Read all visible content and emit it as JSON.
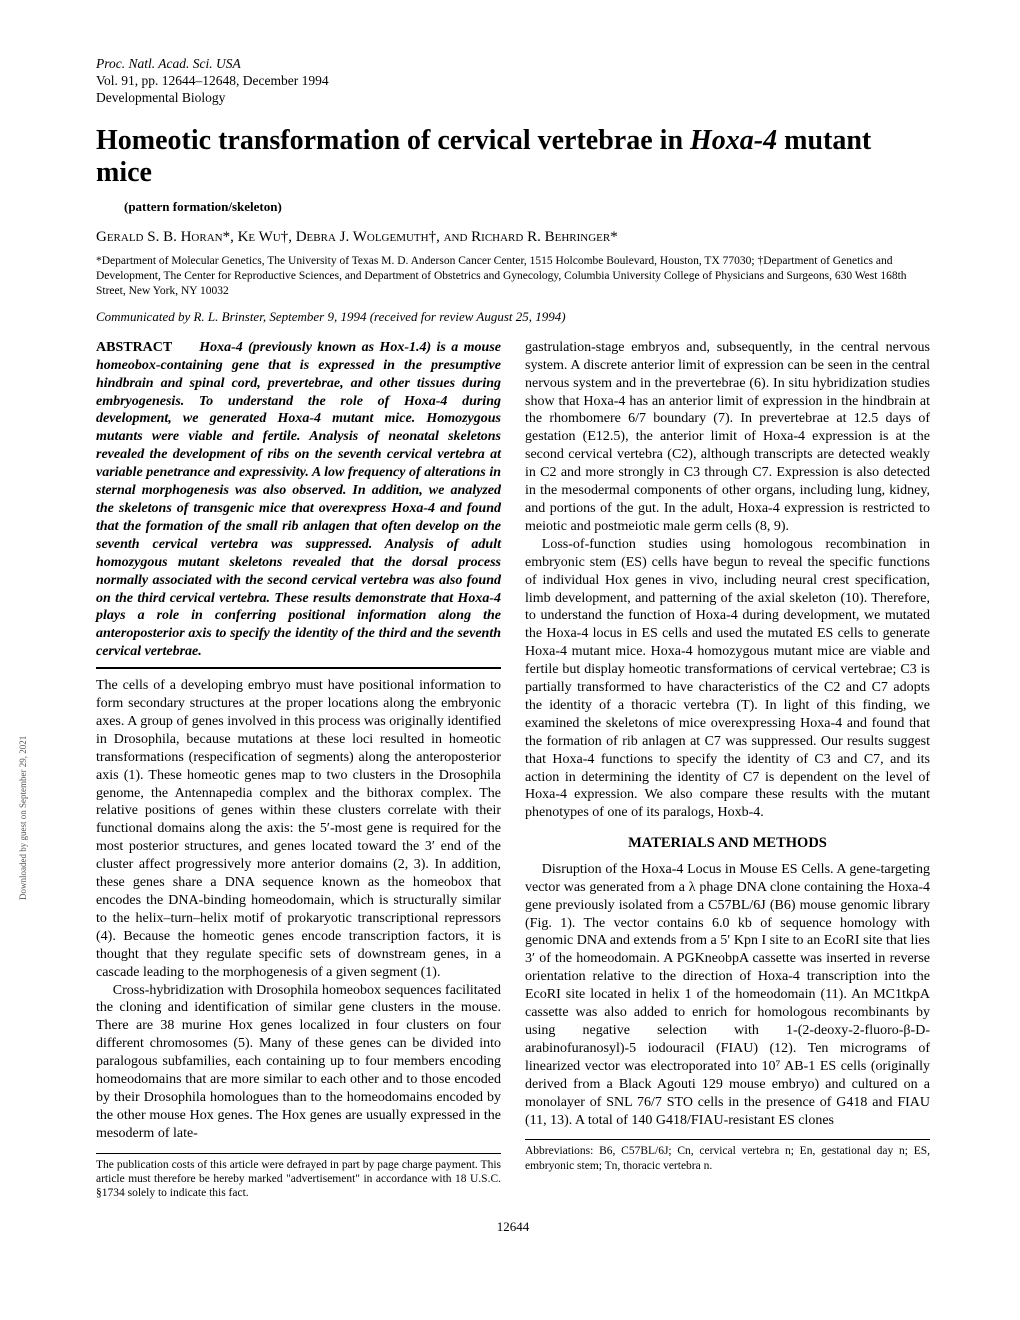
{
  "journal": {
    "line1": "Proc. Natl. Acad. Sci. USA",
    "line2": "Vol. 91, pp. 12644–12648, December 1994",
    "line3": "Developmental Biology"
  },
  "title_plain_prefix": "Homeotic transformation of cervical vertebrae in ",
  "title_italic": "Hoxa-4",
  "title_plain_suffix": " mutant mice",
  "subtitle": "(pattern formation/skeleton)",
  "authors": "Gerald S. B. Horan*, Ke Wu†, Debra J. Wolgemuth†, and Richard R. Behringer*",
  "affiliations": "*Department of Molecular Genetics, The University of Texas M. D. Anderson Cancer Center, 1515 Holcombe Boulevard, Houston, TX 77030; †Department of Genetics and Development, The Center for Reproductive Sciences, and Department of Obstetrics and Gynecology, Columbia University College of Physicians and Surgeons, 630 West 168th Street, New York, NY 10032",
  "communicated": "Communicated by R. L. Brinster, September 9, 1994 (received for review August 25, 1994)",
  "abstract_label": "ABSTRACT",
  "abstract_text": "Hoxa-4 (previously known as Hox-1.4) is a mouse homeobox-containing gene that is expressed in the presumptive hindbrain and spinal cord, prevertebrae, and other tissues during embryogenesis. To understand the role of Hoxa-4 during development, we generated Hoxa-4 mutant mice. Homozygous mutants were viable and fertile. Analysis of neonatal skeletons revealed the development of ribs on the seventh cervical vertebra at variable penetrance and expressivity. A low frequency of alterations in sternal morphogenesis was also observed. In addition, we analyzed the skeletons of transgenic mice that overexpress Hoxa-4 and found that the formation of the small rib anlagen that often develop on the seventh cervical vertebra was suppressed. Analysis of adult homozygous mutant skeletons revealed that the dorsal process normally associated with the second cervical vertebra was also found on the third cervical vertebra. These results demonstrate that Hoxa-4 plays a role in conferring positional information along the anteroposterior axis to specify the identity of the third and the seventh cervical vertebrae.",
  "left_body_p1": "The cells of a developing embryo must have positional information to form secondary structures at the proper locations along the embryonic axes. A group of genes involved in this process was originally identified in Drosophila, because mutations at these loci resulted in homeotic transformations (respecification of segments) along the anteroposterior axis (1). These homeotic genes map to two clusters in the Drosophila genome, the Antennapedia complex and the bithorax complex. The relative positions of genes within these clusters correlate with their functional domains along the axis: the 5′-most gene is required for the most posterior structures, and genes located toward the 3′ end of the cluster affect progressively more anterior domains (2, 3). In addition, these genes share a DNA sequence known as the homeobox that encodes the DNA-binding homeodomain, which is structurally similar to the helix–turn–helix motif of prokaryotic transcriptional repressors (4). Because the homeotic genes encode transcription factors, it is thought that they regulate specific sets of downstream genes, in a cascade leading to the morphogenesis of a given segment (1).",
  "left_body_p2": "Cross-hybridization with Drosophila homeobox sequences facilitated the cloning and identification of similar gene clusters in the mouse. There are 38 murine Hox genes localized in four clusters on four different chromosomes (5). Many of these genes can be divided into paralogous subfamilies, each containing up to four members encoding homeodomains that are more similar to each other and to those encoded by their Drosophila homologues than to the homeodomains encoded by the other mouse Hox genes. The Hox genes are usually expressed in the mesoderm of late-",
  "right_body_p1": "gastrulation-stage embryos and, subsequently, in the central nervous system. A discrete anterior limit of expression can be seen in the central nervous system and in the prevertebrae (6). In situ hybridization studies show that Hoxa-4 has an anterior limit of expression in the hindbrain at the rhombomere 6/7 boundary (7). In prevertebrae at 12.5 days of gestation (E12.5), the anterior limit of Hoxa-4 expression is at the second cervical vertebra (C2), although transcripts are detected weakly in C2 and more strongly in C3 through C7. Expression is also detected in the mesodermal components of other organs, including lung, kidney, and portions of the gut. In the adult, Hoxa-4 expression is restricted to meiotic and postmeiotic male germ cells (8, 9).",
  "right_body_p2": "Loss-of-function studies using homologous recombination in embryonic stem (ES) cells have begun to reveal the specific functions of individual Hox genes in vivo, including neural crest specification, limb development, and patterning of the axial skeleton (10). Therefore, to understand the function of Hoxa-4 during development, we mutated the Hoxa-4 locus in ES cells and used the mutated ES cells to generate Hoxa-4 mutant mice. Hoxa-4 homozygous mutant mice are viable and fertile but display homeotic transformations of cervical vertebrae; C3 is partially transformed to have characteristics of the C2 and C7 adopts the identity of a thoracic vertebra (T). In light of this finding, we examined the skeletons of mice overexpressing Hoxa-4 and found that the formation of rib anlagen at C7 was suppressed. Our results suggest that Hoxa-4 functions to specify the identity of C3 and C7, and its action in determining the identity of C7 is dependent on the level of Hoxa-4 expression. We also compare these results with the mutant phenotypes of one of its paralogs, Hoxb-4.",
  "section_heading": "MATERIALS AND METHODS",
  "methods_p1": "Disruption of the Hoxa-4 Locus in Mouse ES Cells. A gene-targeting vector was generated from a λ phage DNA clone containing the Hoxa-4 gene previously isolated from a C57BL/6J (B6) mouse genomic library (Fig. 1). The vector contains 6.0 kb of sequence homology with genomic DNA and extends from a 5′ Kpn I site to an EcoRI site that lies 3′ of the homeodomain. A PGKneobpA cassette was inserted in reverse orientation relative to the direction of Hoxa-4 transcription into the EcoRI site located in helix 1 of the homeodomain (11). An MC1tkpA cassette was also added to enrich for homologous recombinants by using negative selection with 1-(2-deoxy-2-fluoro-β-D-arabinofuranosyl)-5 iodouracil (FIAU) (12). Ten micrograms of linearized vector was electroporated into 10⁷ AB-1 ES cells (originally derived from a Black Agouti 129 mouse embryo) and cultured on a monolayer of SNL 76/7 STO cells in the presence of G418 and FIAU (11, 13). A total of 140 G418/FIAU-resistant ES clones",
  "footnote_left": "The publication costs of this article were defrayed in part by page charge payment. This article must therefore be hereby marked \"advertisement\" in accordance with 18 U.S.C. §1734 solely to indicate this fact.",
  "footnote_right": "Abbreviations: B6, C57BL/6J; Cn, cervical vertebra n; En, gestational day n; ES, embryonic stem; Tn, thoracic vertebra n.",
  "page_number": "12644",
  "side_text": "Downloaded by guest on September 29, 2021"
}
